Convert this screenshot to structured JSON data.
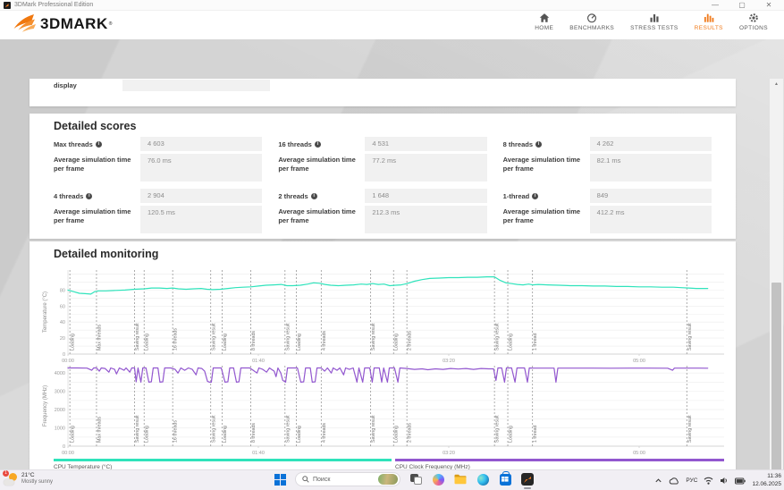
{
  "window": {
    "title": "3DMark Professional Edition"
  },
  "brand": {
    "logo_text": "3DMARK",
    "accent_color": "#f07c1e"
  },
  "nav": {
    "active": "RESULTS",
    "items": [
      {
        "label": "HOME"
      },
      {
        "label": "BENCHMARKS"
      },
      {
        "label": "STRESS TESTS"
      },
      {
        "label": "RESULTS"
      },
      {
        "label": "OPTIONS"
      }
    ]
  },
  "form": {
    "display_label": "display",
    "display_value": ""
  },
  "detailed_scores": {
    "title": "Detailed scores",
    "avg_label": "Average simulation time per frame",
    "items": [
      {
        "label": "Max threads",
        "score": "4 603",
        "avg": "76.0 ms"
      },
      {
        "label": "16 threads",
        "score": "4 531",
        "avg": "77.2 ms"
      },
      {
        "label": "8 threads",
        "score": "4 262",
        "avg": "82.1 ms"
      },
      {
        "label": "4 threads",
        "score": "2 904",
        "avg": "120.5 ms"
      },
      {
        "label": "2 threads",
        "score": "1 648",
        "avg": "212.3 ms"
      },
      {
        "label": "1-thread",
        "score": "849",
        "avg": "412.2 ms"
      }
    ]
  },
  "monitoring": {
    "title": "Detailed monitoring"
  },
  "chart_data": {
    "type": "line",
    "x_axis": {
      "unit": "mm:ss",
      "ticks": [
        {
          "t": 0,
          "label": "00:00"
        },
        {
          "t": 100,
          "label": "01:40"
        },
        {
          "t": 200,
          "label": "03:20"
        },
        {
          "t": 300,
          "label": "05:00"
        }
      ]
    },
    "event_markers": [
      {
        "t": 1,
        "label": "Loading"
      },
      {
        "t": 15,
        "label": "Max threads"
      },
      {
        "t": 35,
        "label": "Saving result"
      },
      {
        "t": 40,
        "label": "Loading"
      },
      {
        "t": 55,
        "label": "16 threads"
      },
      {
        "t": 75,
        "label": "Saving result"
      },
      {
        "t": 81,
        "label": "Loading"
      },
      {
        "t": 96,
        "label": "8 threads"
      },
      {
        "t": 114,
        "label": "Saving result"
      },
      {
        "t": 120,
        "label": "Loading"
      },
      {
        "t": 133,
        "label": "4 threads"
      },
      {
        "t": 159,
        "label": "Saving result"
      },
      {
        "t": 171,
        "label": "Loading"
      },
      {
        "t": 178,
        "label": "2 threads"
      },
      {
        "t": 224,
        "label": "Saving result"
      },
      {
        "t": 231,
        "label": "Loading"
      },
      {
        "t": 244,
        "label": "1 thread"
      },
      {
        "t": 325,
        "label": "Saving result"
      }
    ],
    "charts": [
      {
        "name": "cpu-temperature",
        "ylabel": "Temperature (°C)",
        "legend": "CPU Temperature (°C)",
        "color": "#2fe3bb",
        "ymax": 105,
        "grid_step": 10,
        "grid_max": 100,
        "tick_step": 20,
        "tick_max": 80,
        "points": [
          [
            0,
            80
          ],
          [
            3,
            78
          ],
          [
            6,
            76
          ],
          [
            9,
            75.5
          ],
          [
            12,
            75
          ],
          [
            14,
            78
          ],
          [
            16,
            79
          ],
          [
            20,
            79
          ],
          [
            25,
            79.5
          ],
          [
            30,
            80
          ],
          [
            35,
            81
          ],
          [
            40,
            81.5
          ],
          [
            44,
            82.5
          ],
          [
            48,
            82.5
          ],
          [
            52,
            82
          ],
          [
            55,
            82.5
          ],
          [
            58,
            81.5
          ],
          [
            62,
            81
          ],
          [
            66,
            81.5
          ],
          [
            70,
            82
          ],
          [
            73,
            81
          ],
          [
            76,
            80.5
          ],
          [
            80,
            81
          ],
          [
            84,
            82
          ],
          [
            88,
            83
          ],
          [
            92,
            83.5
          ],
          [
            96,
            84
          ],
          [
            100,
            85
          ],
          [
            104,
            86
          ],
          [
            108,
            86.5
          ],
          [
            112,
            87
          ],
          [
            115,
            85.5
          ],
          [
            118,
            85.5
          ],
          [
            122,
            86
          ],
          [
            126,
            87.5
          ],
          [
            129,
            89
          ],
          [
            132,
            88.5
          ],
          [
            135,
            87
          ],
          [
            138,
            86
          ],
          [
            142,
            85.5
          ],
          [
            146,
            86
          ],
          [
            150,
            86.5
          ],
          [
            154,
            87.5
          ],
          [
            157,
            87
          ],
          [
            160,
            88
          ],
          [
            163,
            87
          ],
          [
            166,
            87.5
          ],
          [
            169,
            85.5
          ],
          [
            172,
            86
          ],
          [
            175,
            86.5
          ],
          [
            178,
            88
          ],
          [
            182,
            91
          ],
          [
            186,
            93
          ],
          [
            190,
            94.5
          ],
          [
            195,
            95
          ],
          [
            200,
            95.5
          ],
          [
            205,
            95.5
          ],
          [
            210,
            96
          ],
          [
            215,
            96
          ],
          [
            220,
            96.5
          ],
          [
            224,
            96.5
          ],
          [
            227,
            92
          ],
          [
            230,
            89
          ],
          [
            233,
            88
          ],
          [
            236,
            87
          ],
          [
            239,
            86.5
          ],
          [
            242,
            87.5
          ],
          [
            244,
            86.5
          ],
          [
            247,
            87
          ],
          [
            252,
            86.5
          ],
          [
            258,
            86
          ],
          [
            264,
            85.5
          ],
          [
            270,
            85.5
          ],
          [
            276,
            85
          ],
          [
            282,
            85
          ],
          [
            288,
            84.5
          ],
          [
            294,
            84.5
          ],
          [
            300,
            84
          ],
          [
            306,
            84
          ],
          [
            312,
            83.5
          ],
          [
            318,
            83.5
          ],
          [
            322,
            83
          ],
          [
            326,
            82.5
          ],
          [
            330,
            82
          ],
          [
            336,
            82
          ]
        ]
      },
      {
        "name": "cpu-frequency",
        "ylabel": "Frequency (MHz)",
        "legend": "CPU Clock Frequency (MHz)",
        "color": "#9257cf",
        "ymax": 4400,
        "grid_step": 500,
        "grid_max": 4000,
        "tick_step": 1000,
        "tick_max": 4000,
        "points": [
          [
            0,
            4280
          ],
          [
            5,
            4280
          ],
          [
            10,
            4270
          ],
          [
            12.5,
            4150
          ],
          [
            13.5,
            4280
          ],
          [
            15,
            4280
          ],
          [
            16.5,
            4100
          ],
          [
            17.5,
            4280
          ],
          [
            19.5,
            4250
          ],
          [
            21.5,
            4050
          ],
          [
            22.5,
            4280
          ],
          [
            24.5,
            4200
          ],
          [
            25.5,
            3950
          ],
          [
            27,
            4280
          ],
          [
            29.5,
            4150
          ],
          [
            30.5,
            4280
          ],
          [
            32.5,
            4050
          ],
          [
            33.5,
            4280
          ],
          [
            35,
            4280
          ],
          [
            35.8,
            3520
          ],
          [
            36.8,
            4280
          ],
          [
            38.3,
            3500
          ],
          [
            39.3,
            4280
          ],
          [
            41,
            4280
          ],
          [
            42.5,
            3500
          ],
          [
            43.8,
            3520
          ],
          [
            44.8,
            4280
          ],
          [
            47.3,
            4280
          ],
          [
            48.3,
            3500
          ],
          [
            49.8,
            3520
          ],
          [
            50.8,
            4280
          ],
          [
            54,
            4280
          ],
          [
            56.3,
            4200
          ],
          [
            57.8,
            4000
          ],
          [
            59.3,
            4280
          ],
          [
            61.3,
            4150
          ],
          [
            63.3,
            4280
          ],
          [
            65.3,
            4200
          ],
          [
            67.3,
            3900
          ],
          [
            68.3,
            4280
          ],
          [
            70.3,
            4250
          ],
          [
            71.8,
            4100
          ],
          [
            73.3,
            3550
          ],
          [
            74.3,
            3500
          ],
          [
            75.3,
            3500
          ],
          [
            76.3,
            4280
          ],
          [
            80.5,
            4280
          ],
          [
            82.5,
            3500
          ],
          [
            84,
            3520
          ],
          [
            85,
            4280
          ],
          [
            87,
            4280
          ],
          [
            88.5,
            3500
          ],
          [
            89.8,
            3520
          ],
          [
            90.8,
            4280
          ],
          [
            95.5,
            4280
          ],
          [
            97.3,
            4150
          ],
          [
            99.3,
            4000
          ],
          [
            100.3,
            4280
          ],
          [
            102.3,
            4200
          ],
          [
            104.3,
            4050
          ],
          [
            105.8,
            4280
          ],
          [
            108.3,
            4100
          ],
          [
            109.3,
            3800
          ],
          [
            110.3,
            4280
          ],
          [
            111.8,
            4000
          ],
          [
            112.8,
            3600
          ],
          [
            114.3,
            3500
          ],
          [
            115.3,
            4280
          ],
          [
            120.5,
            4280
          ],
          [
            122.3,
            3500
          ],
          [
            123.8,
            3520
          ],
          [
            124.8,
            4280
          ],
          [
            127.3,
            4280
          ],
          [
            128.3,
            3500
          ],
          [
            129.8,
            3520
          ],
          [
            130.8,
            4280
          ],
          [
            133,
            4280
          ],
          [
            134.8,
            4100
          ],
          [
            136.3,
            4280
          ],
          [
            138.3,
            4000
          ],
          [
            139.3,
            4280
          ],
          [
            141.3,
            4150
          ],
          [
            142.8,
            4280
          ],
          [
            144.8,
            3900
          ],
          [
            145.8,
            4280
          ],
          [
            147.8,
            4200
          ],
          [
            149.8,
            4280
          ],
          [
            151.8,
            3500
          ],
          [
            152.8,
            4280
          ],
          [
            154.8,
            3500
          ],
          [
            155.8,
            4280
          ],
          [
            158.5,
            4280
          ],
          [
            159.8,
            3500
          ],
          [
            160.8,
            4280
          ],
          [
            163.5,
            4280
          ],
          [
            164.8,
            3500
          ],
          [
            165.8,
            4280
          ],
          [
            167.8,
            3500
          ],
          [
            168.8,
            4280
          ],
          [
            171.5,
            4280
          ],
          [
            173.3,
            3500
          ],
          [
            174.3,
            4280
          ],
          [
            178,
            4250
          ],
          [
            182,
            4200
          ],
          [
            186,
            4230
          ],
          [
            189,
            4180
          ],
          [
            193,
            4230
          ],
          [
            197,
            4200
          ],
          [
            201,
            4250
          ],
          [
            205,
            4220
          ],
          [
            209,
            4250
          ],
          [
            213,
            4200
          ],
          [
            217,
            4250
          ],
          [
            221,
            4230
          ],
          [
            223.5,
            4230
          ],
          [
            224.8,
            3600
          ],
          [
            225.8,
            4280
          ],
          [
            227.8,
            4280
          ],
          [
            229.3,
            3500
          ],
          [
            230.3,
            4280
          ],
          [
            233,
            4280
          ],
          [
            234.8,
            3500
          ],
          [
            235.8,
            4280
          ],
          [
            239.8,
            4280
          ],
          [
            241.3,
            3500
          ],
          [
            242.3,
            4280
          ],
          [
            244,
            4270
          ],
          [
            250,
            4270
          ],
          [
            255.3,
            4270
          ],
          [
            256.3,
            3500
          ],
          [
            257.3,
            4270
          ],
          [
            265,
            4270
          ],
          [
            275,
            4270
          ],
          [
            285,
            4265
          ],
          [
            295,
            4270
          ],
          [
            305,
            4270
          ],
          [
            315,
            4265
          ],
          [
            317.5,
            4150
          ],
          [
            318.5,
            4270
          ],
          [
            325,
            4270
          ],
          [
            331,
            4270
          ],
          [
            336,
            4265
          ]
        ]
      }
    ]
  },
  "taskbar": {
    "search_placeholder": "Поиск",
    "weather": {
      "temp": "21°C",
      "condition": "Mostly sunny",
      "badge": "1"
    },
    "tray": {
      "language": "РУС",
      "time": "11:36",
      "date": "12.06.2025"
    }
  }
}
